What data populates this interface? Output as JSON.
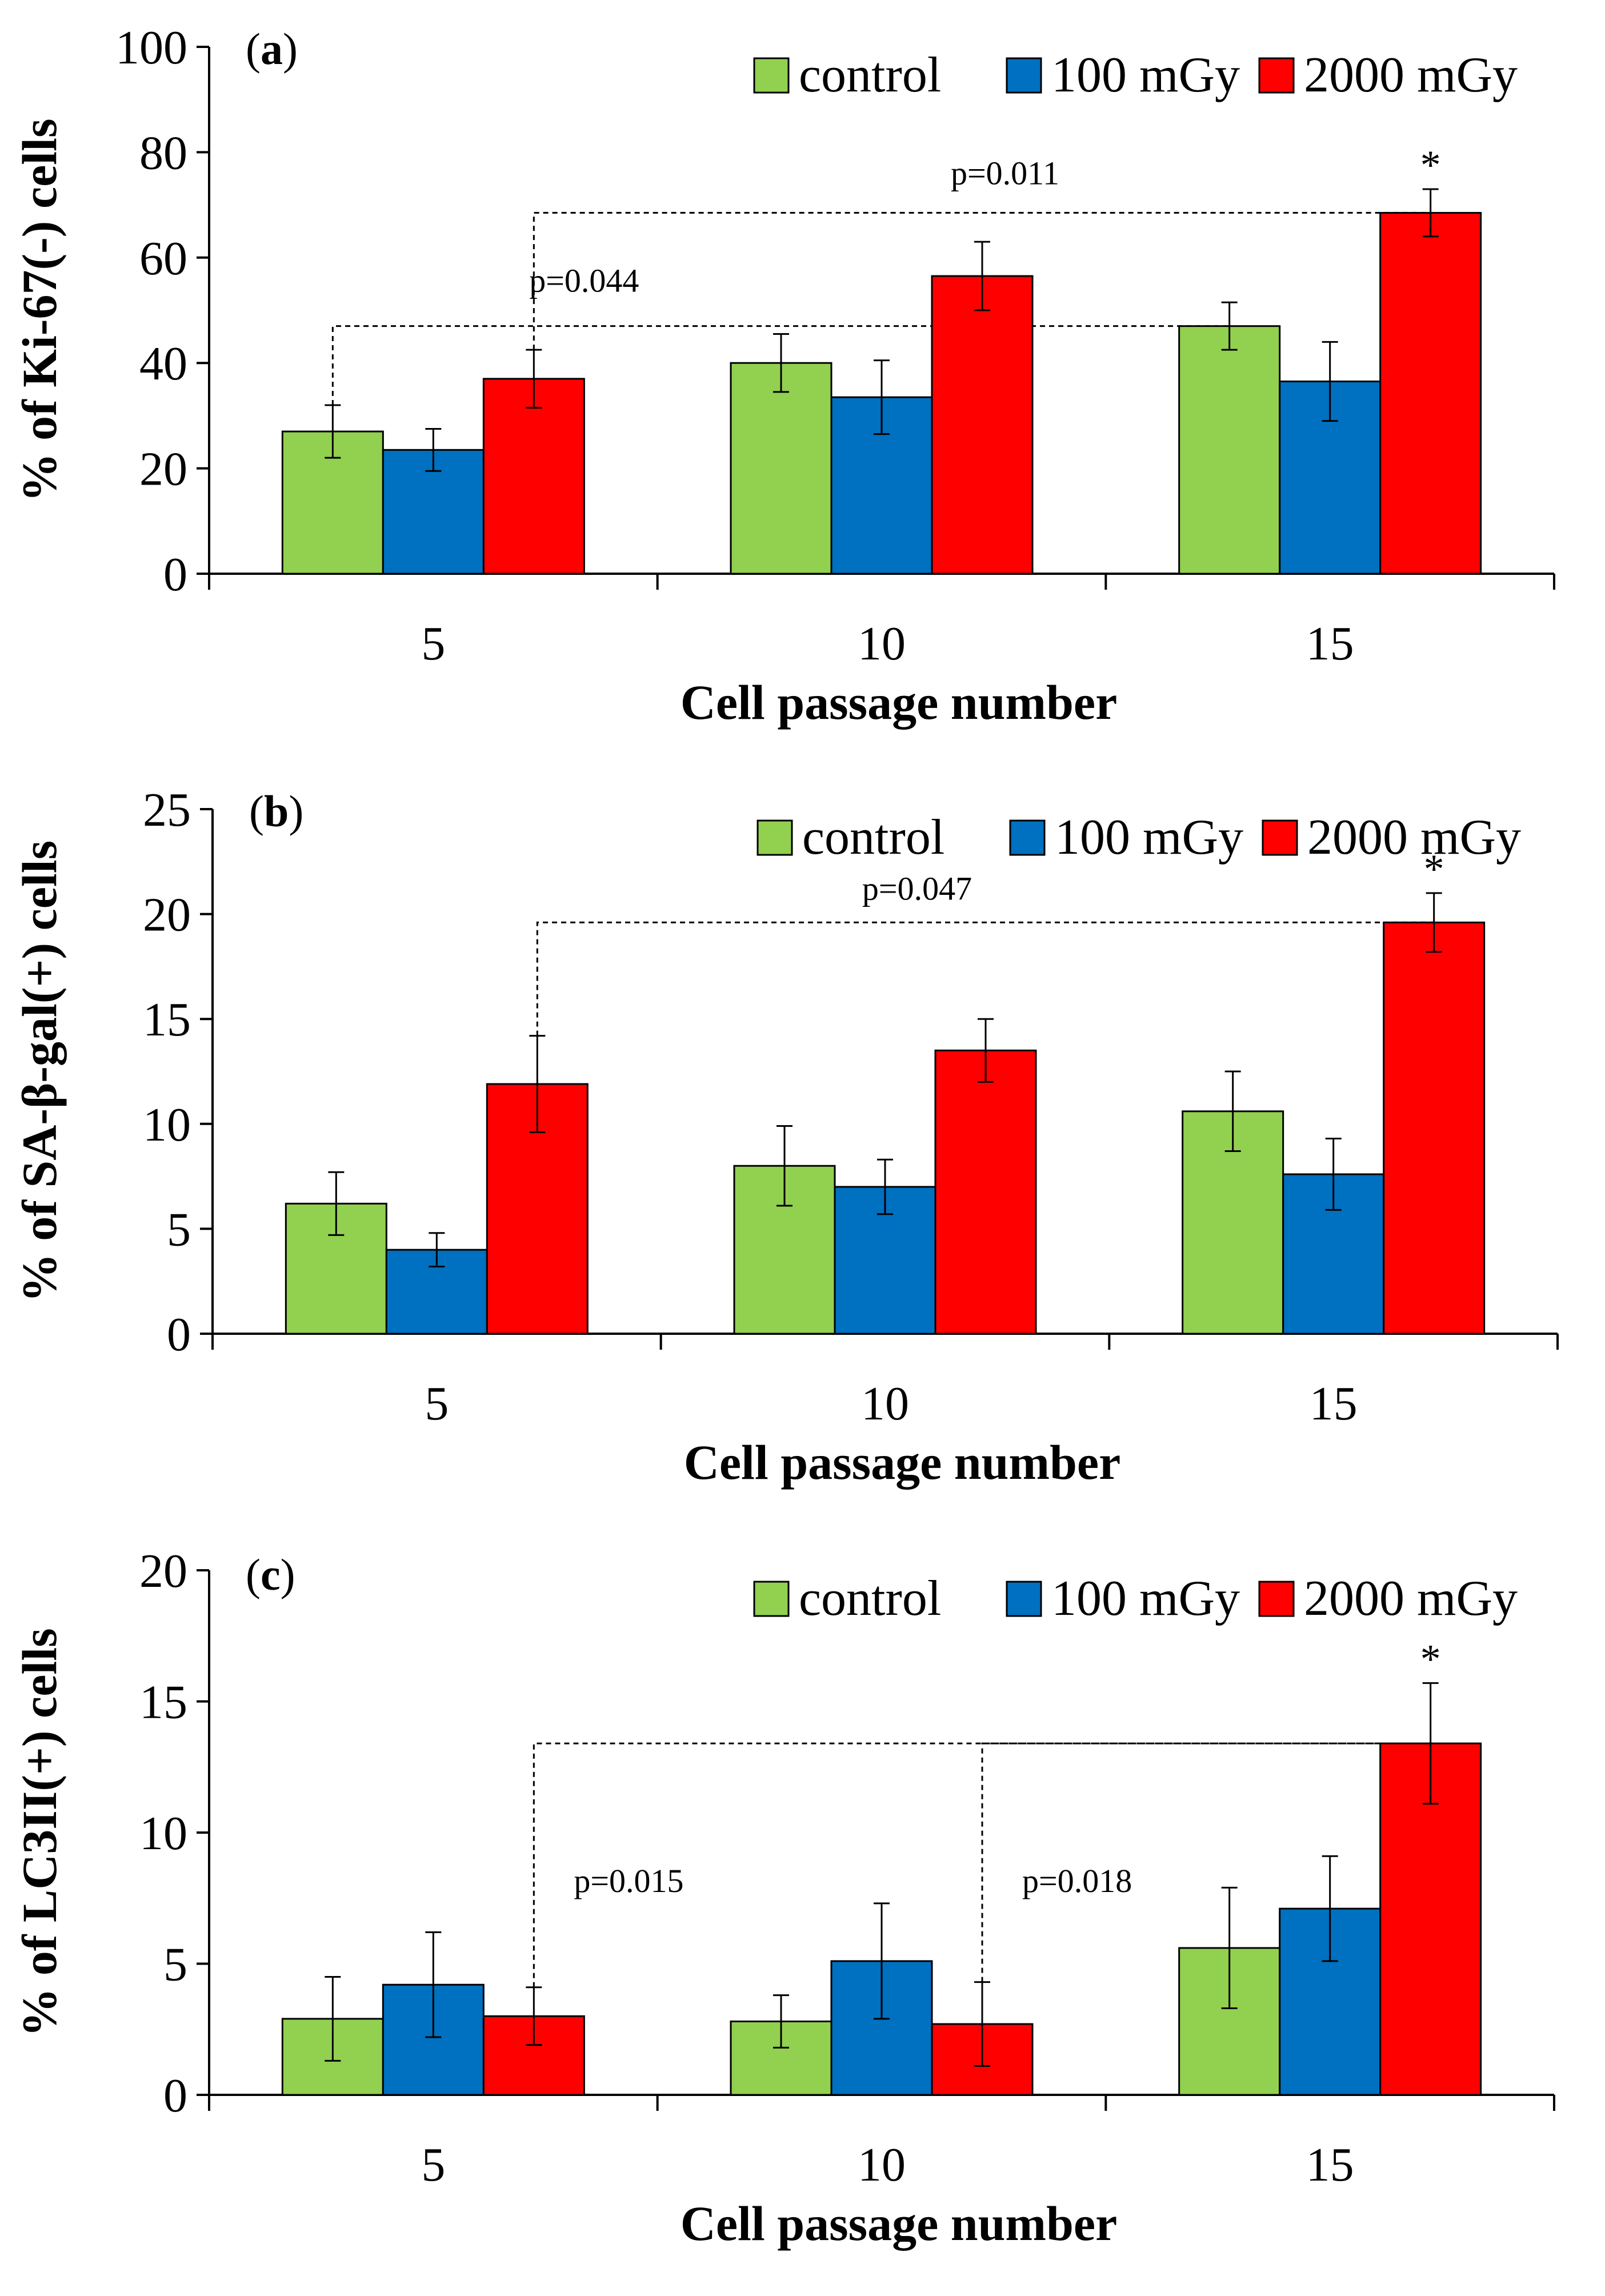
{
  "figure": {
    "colors": {
      "control": "#92D050",
      "100 mGy": "#0070C0",
      "2000 mGy": "#FF0000",
      "axis": "#000000",
      "bracket": "#000000"
    }
  },
  "chart_data": [
    {
      "type": "bar",
      "panel_label": "a",
      "title": "",
      "xlabel": "Cell passage number",
      "ylabel": "% of Ki-67(-) cells",
      "categories": [
        "5",
        "10",
        "15"
      ],
      "ylim": [
        0,
        100
      ],
      "yticks": [
        0,
        20,
        40,
        60,
        80,
        100
      ],
      "legend_position": "top-right",
      "series": [
        {
          "name": "control",
          "values": [
            27,
            40,
            47
          ],
          "errors": [
            5,
            5.5,
            4.5
          ]
        },
        {
          "name": "100 mGy",
          "values": [
            23.5,
            33.5,
            36.5
          ],
          "errors": [
            4,
            7,
            7.5
          ]
        },
        {
          "name": "2000 mGy",
          "values": [
            37,
            56.5,
            68.5
          ],
          "errors": [
            5.5,
            6.5,
            4.5
          ]
        }
      ],
      "annotations": [
        {
          "type": "bracket",
          "text": "p=0.044",
          "from_category": 0,
          "from_series": 0,
          "to_category": 2,
          "to_series": 0,
          "level": 47
        },
        {
          "type": "bracket",
          "text": "p=0.011",
          "from_category": 0,
          "from_series": 2,
          "to_category": 2,
          "to_series": 2,
          "level": 68.5
        },
        {
          "type": "star",
          "text": "*",
          "category": 2,
          "series": 2
        }
      ]
    },
    {
      "type": "bar",
      "panel_label": "b",
      "title": "",
      "xlabel": "Cell passage number",
      "ylabel": "% of SA-β-gal(+) cells",
      "categories": [
        "5",
        "10",
        "15"
      ],
      "ylim": [
        0,
        25
      ],
      "yticks": [
        0,
        5,
        10,
        15,
        20,
        25
      ],
      "legend_position": "top-right",
      "series": [
        {
          "name": "control",
          "values": [
            6.2,
            8,
            10.6
          ],
          "errors": [
            1.5,
            1.9,
            1.9
          ]
        },
        {
          "name": "100 mGy",
          "values": [
            4,
            7,
            7.6
          ],
          "errors": [
            0.8,
            1.3,
            1.7
          ]
        },
        {
          "name": "2000 mGy",
          "values": [
            11.9,
            13.5,
            19.6
          ],
          "errors": [
            2.3,
            1.5,
            1.4
          ]
        }
      ],
      "annotations": [
        {
          "type": "bracket",
          "text": "p=0.047",
          "from_category": 0,
          "from_series": 2,
          "to_category": 2,
          "to_series": 2,
          "level": 19.6
        },
        {
          "type": "star",
          "text": "*",
          "category": 2,
          "series": 2
        }
      ]
    },
    {
      "type": "bar",
      "panel_label": "c",
      "title": "",
      "xlabel": "Cell passage number",
      "ylabel": "% of LC3II(+) cells",
      "categories": [
        "5",
        "10",
        "15"
      ],
      "ylim": [
        0,
        20
      ],
      "yticks": [
        0,
        5,
        10,
        15,
        20
      ],
      "legend_position": "top-right",
      "series": [
        {
          "name": "control",
          "values": [
            2.9,
            2.8,
            5.6
          ],
          "errors": [
            1.6,
            1,
            2.3
          ]
        },
        {
          "name": "100 mGy",
          "values": [
            4.2,
            5.1,
            7.1
          ],
          "errors": [
            2,
            2.2,
            2
          ]
        },
        {
          "name": "2000 mGy",
          "values": [
            3,
            2.7,
            13.4
          ],
          "errors": [
            1.1,
            1.6,
            2.3
          ]
        }
      ],
      "annotations": [
        {
          "type": "bracket",
          "text": "p=0.015",
          "from_category": 0,
          "from_series": 2,
          "to_category": 2,
          "to_series": 2,
          "level": 13.4
        },
        {
          "type": "bracket",
          "text": "p=0.018",
          "from_category": 1,
          "from_series": 2,
          "to_category": 2,
          "to_series": 2,
          "level": 13.4
        },
        {
          "type": "star",
          "text": "*",
          "category": 2,
          "series": 2
        }
      ]
    }
  ]
}
